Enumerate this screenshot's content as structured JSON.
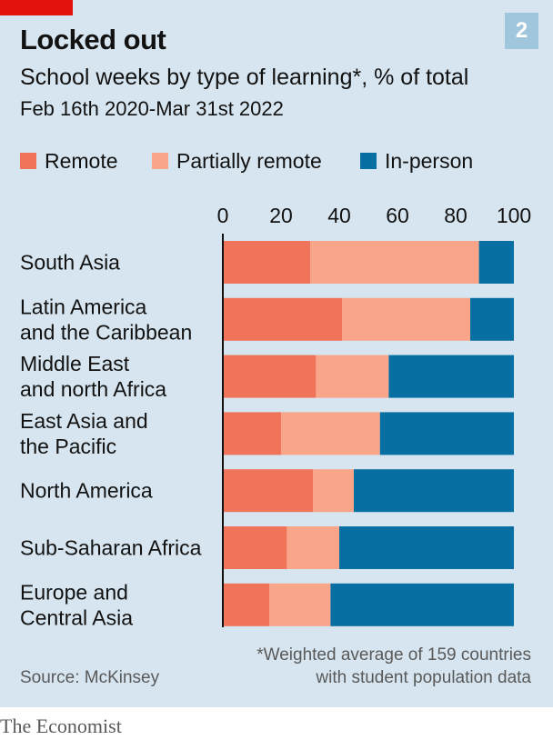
{
  "header": {
    "title": "Locked out",
    "subtitle": "School weeks by type of learning*, % of total",
    "date_range": "Feb 16th 2020-Mar 31st 2022",
    "chart_number": "2"
  },
  "colors": {
    "remote": "#f0745a",
    "partially_remote": "#f8a58a",
    "in_person": "#076fa1",
    "background": "#d6e5ef",
    "brand_red": "#e3120b"
  },
  "chart_data": {
    "type": "bar",
    "orientation": "horizontal",
    "stacked": true,
    "title": "Locked out",
    "subtitle": "School weeks by type of learning*, % of total",
    "xlabel": "",
    "ylabel": "",
    "xlim": [
      0,
      100
    ],
    "xticks": [
      0,
      20,
      40,
      60,
      80,
      100
    ],
    "legend_position": "top",
    "categories": [
      [
        "South Asia"
      ],
      [
        "Latin America",
        "and the Caribbean"
      ],
      [
        "Middle East",
        "and north Africa"
      ],
      [
        "East Asia and",
        "the Pacific"
      ],
      [
        "North America"
      ],
      [
        "Sub-Saharan Africa"
      ],
      [
        "Europe and",
        "Central Asia"
      ]
    ],
    "series": [
      {
        "name": "Remote",
        "values": [
          30,
          41,
          32,
          20,
          31,
          22,
          16
        ]
      },
      {
        "name": "Partially remote",
        "values": [
          58,
          44,
          25,
          34,
          14,
          18,
          21
        ]
      },
      {
        "name": "In-person",
        "values": [
          12,
          15,
          43,
          46,
          55,
          60,
          63
        ]
      }
    ]
  },
  "footer": {
    "source": "Source: McKinsey",
    "footnote_line1": "*Weighted average of 159 countries",
    "footnote_line2": "with student population data",
    "brand": "The Economist"
  }
}
